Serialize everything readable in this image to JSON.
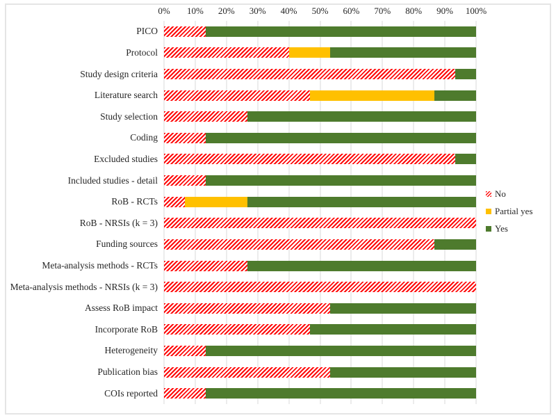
{
  "figure": {
    "background_color": "#ffffff",
    "frame_color": "#e5e5e5",
    "gridline_color": "#d9d9d9",
    "text_color": "#262626"
  },
  "chart_data": {
    "type": "bar",
    "orientation": "horizontal",
    "stacked": true,
    "unit": "percent",
    "xlim": [
      0,
      100
    ],
    "grid": true,
    "legend_position": "right",
    "x_ticks": [
      "0%",
      "10%",
      "20%",
      "30%",
      "40%",
      "50%",
      "60%",
      "70%",
      "80%",
      "90%",
      "100%"
    ],
    "categories": [
      "PICO",
      "Protocol",
      "Study design criteria",
      "Literature search",
      "Study selection",
      "Coding",
      "Excluded studies",
      "Included studies - detail",
      "RoB - RCTs",
      "RoB - NRSIs (k = 3)",
      "Funding sources",
      "Meta-analysis methods - RCTs",
      "Meta-analysis methods - NRSIs (k = 3)",
      "Assess RoB impact",
      "Incorporate RoB",
      "Heterogeneity",
      "Publication bias",
      "COIs reported"
    ],
    "series": [
      {
        "name": "No",
        "css": "no",
        "color": "#ff0000",
        "pattern": "diagonal-hatch",
        "values": [
          13.3,
          40,
          93.3,
          46.7,
          26.7,
          13.3,
          93.3,
          13.3,
          6.7,
          100,
          86.7,
          26.7,
          100,
          53.3,
          46.7,
          13.3,
          53.3,
          13.3
        ]
      },
      {
        "name": "Partial yes",
        "css": "partial",
        "color": "#ffc000",
        "pattern": "solid",
        "values": [
          0,
          13.3,
          0,
          40,
          0,
          0,
          0,
          0,
          20,
          0,
          0,
          0,
          0,
          0,
          0,
          0,
          0,
          0
        ]
      },
      {
        "name": "Yes",
        "css": "yes",
        "color": "#4e7b2d",
        "pattern": "solid",
        "values": [
          86.7,
          46.7,
          6.7,
          13.3,
          73.3,
          86.7,
          6.7,
          86.7,
          73.3,
          0,
          13.3,
          73.3,
          0,
          46.7,
          53.3,
          86.7,
          46.7,
          86.7
        ]
      }
    ]
  }
}
